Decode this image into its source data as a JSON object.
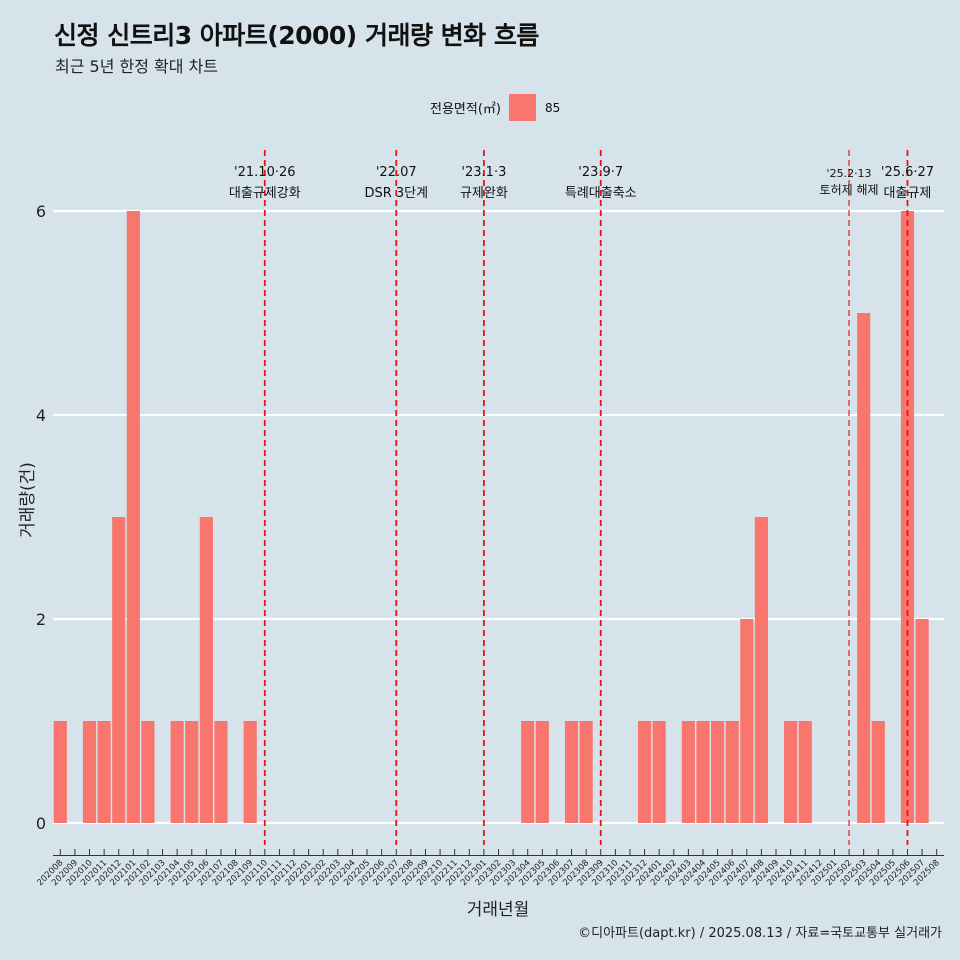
{
  "title": "신정 신트리3 아파트(2000) 거래량 변화 흐름",
  "subtitle": "최근 5년 한정 확대 차트",
  "legend": {
    "title": "전용면적(㎡)",
    "series_label": "85",
    "color": "#f8766d"
  },
  "caption": "©디아파트(dapt.kr) / 2025.08.13 / 자료=국토교통부 실거래가",
  "chart_data": {
    "type": "bar",
    "xlabel": "거래년월",
    "ylabel": "거래량(건)",
    "ylim": [
      -0.3,
      6.6
    ],
    "yticks": [
      0,
      2,
      4,
      6
    ],
    "categories": [
      "202008",
      "202009",
      "202010",
      "202011",
      "202012",
      "202101",
      "202102",
      "202103",
      "202104",
      "202105",
      "202106",
      "202107",
      "202108",
      "202109",
      "202110",
      "202111",
      "202112",
      "202201",
      "202202",
      "202203",
      "202204",
      "202205",
      "202206",
      "202207",
      "202208",
      "202209",
      "202210",
      "202211",
      "202212",
      "202301",
      "202302",
      "202303",
      "202304",
      "202305",
      "202306",
      "202307",
      "202308",
      "202309",
      "202310",
      "202311",
      "202312",
      "202401",
      "202402",
      "202403",
      "202404",
      "202405",
      "202406",
      "202407",
      "202408",
      "202409",
      "202410",
      "202411",
      "202412",
      "202501",
      "202502",
      "202503",
      "202504",
      "202505",
      "202506",
      "202507",
      "202508"
    ],
    "series": [
      {
        "name": "85",
        "color": "#f8766d",
        "values": [
          1,
          0,
          1,
          1,
          3,
          6,
          1,
          0,
          1,
          1,
          3,
          1,
          0,
          1,
          0,
          0,
          0,
          0,
          0,
          0,
          0,
          0,
          0,
          0,
          0,
          0,
          0,
          0,
          0,
          0,
          0,
          0,
          1,
          1,
          0,
          1,
          1,
          0,
          0,
          0,
          1,
          1,
          0,
          1,
          1,
          1,
          1,
          2,
          3,
          0,
          1,
          1,
          0,
          0,
          0,
          5,
          1,
          0,
          6,
          2,
          0
        ]
      }
    ],
    "annotations": [
      {
        "category": "202110",
        "date": "'21.10·26",
        "label": "대출규제강화"
      },
      {
        "category": "202207",
        "date": "'22.07",
        "label": "DSR 3단계"
      },
      {
        "category": "202301",
        "date": "'23.1·3",
        "label": "규제완화"
      },
      {
        "category": "202309",
        "date": "'23.9·7",
        "label": "특례대출축소"
      },
      {
        "category": "202502",
        "date": "'25.2·13",
        "label": "토허제 해제"
      },
      {
        "category": "202506",
        "date": "'25.6·27",
        "label": "대출규제"
      }
    ],
    "grid": true,
    "legend_position": "top"
  }
}
